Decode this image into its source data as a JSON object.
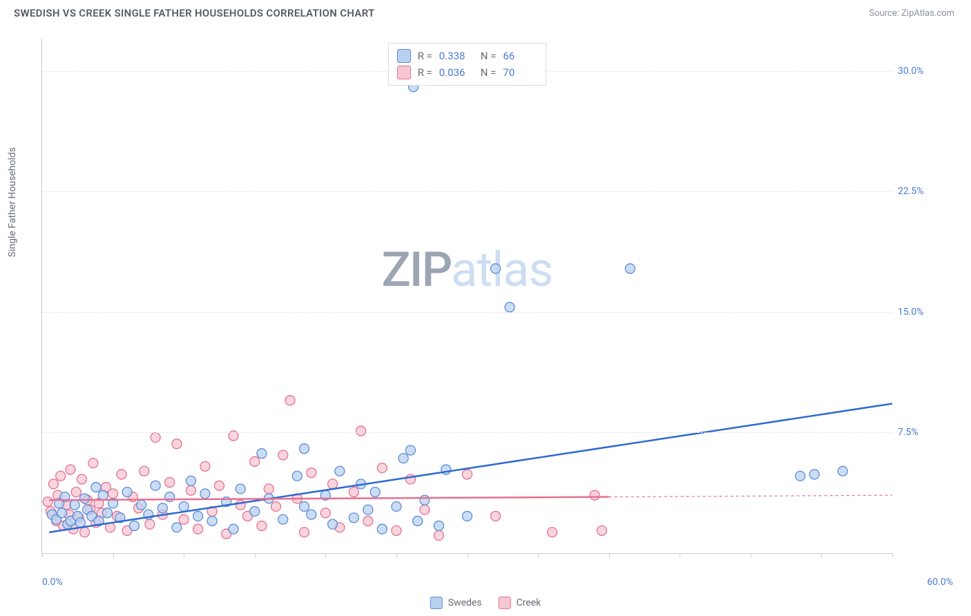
{
  "header": {
    "title": "SWEDISH VS CREEK SINGLE FATHER HOUSEHOLDS CORRELATION CHART",
    "source": "Source: ZipAtlas.com"
  },
  "chart": {
    "type": "scatter",
    "y_axis_label": "Single Father Households",
    "background_color": "#ffffff",
    "grid_color": "#e2e4e8",
    "axis_color": "#c9ccd2",
    "xlim": [
      0,
      60
    ],
    "ylim": [
      0,
      32
    ],
    "x_tick_step": 5,
    "y_ticks": [
      7.5,
      15.0,
      22.5,
      30.0
    ],
    "y_tick_labels": [
      "7.5%",
      "15.0%",
      "22.5%",
      "30.0%"
    ],
    "x_min_label": "0.0%",
    "x_max_label": "60.0%",
    "marker_radius": 7,
    "marker_stroke_width": 1.3,
    "trend_line_width": 2.5,
    "series": [
      {
        "name": "Swedes",
        "fill_color": "#b9d1f0",
        "stroke_color": "#5a8cd8",
        "trend_color": "#2e6ad1",
        "r": 0.338,
        "n": 66,
        "trend": {
          "x1": 0.5,
          "y1": 1.3,
          "x2": 60,
          "y2": 9.3,
          "extrapolate_from": 60
        },
        "points": [
          [
            0.7,
            2.4
          ],
          [
            1.0,
            2.1
          ],
          [
            1.2,
            3.1
          ],
          [
            1.4,
            2.5
          ],
          [
            1.6,
            3.5
          ],
          [
            1.8,
            1.8
          ],
          [
            2.0,
            2.0
          ],
          [
            2.3,
            3.0
          ],
          [
            2.5,
            2.3
          ],
          [
            2.7,
            1.9
          ],
          [
            3.0,
            3.4
          ],
          [
            3.2,
            2.7
          ],
          [
            3.5,
            2.3
          ],
          [
            3.8,
            4.1
          ],
          [
            4.0,
            2.0
          ],
          [
            4.3,
            3.6
          ],
          [
            4.6,
            2.5
          ],
          [
            5.0,
            3.1
          ],
          [
            5.5,
            2.2
          ],
          [
            6.0,
            3.8
          ],
          [
            6.5,
            1.7
          ],
          [
            7.0,
            3.0
          ],
          [
            7.5,
            2.4
          ],
          [
            8.0,
            4.2
          ],
          [
            8.5,
            2.8
          ],
          [
            9.0,
            3.5
          ],
          [
            9.5,
            1.6
          ],
          [
            10.0,
            2.9
          ],
          [
            10.5,
            4.5
          ],
          [
            11.0,
            2.3
          ],
          [
            11.5,
            3.7
          ],
          [
            12.0,
            2.0
          ],
          [
            13.0,
            3.2
          ],
          [
            13.5,
            1.5
          ],
          [
            14.0,
            4.0
          ],
          [
            15.0,
            2.6
          ],
          [
            15.5,
            6.2
          ],
          [
            16.0,
            3.4
          ],
          [
            17.0,
            2.1
          ],
          [
            18.0,
            4.8
          ],
          [
            18.5,
            6.5
          ],
          [
            19.0,
            2.4
          ],
          [
            20.0,
            3.6
          ],
          [
            20.5,
            1.8
          ],
          [
            21.0,
            5.1
          ],
          [
            22.0,
            2.2
          ],
          [
            22.5,
            4.3
          ],
          [
            23.0,
            2.7
          ],
          [
            24.0,
            1.5
          ],
          [
            25.0,
            2.9
          ],
          [
            25.5,
            5.9
          ],
          [
            26.0,
            6.4
          ],
          [
            26.5,
            2.0
          ],
          [
            27.0,
            3.3
          ],
          [
            28.0,
            1.7
          ],
          [
            28.5,
            5.2
          ],
          [
            26.2,
            29.0
          ],
          [
            30.0,
            2.3
          ],
          [
            32.0,
            17.7
          ],
          [
            33.0,
            15.3
          ],
          [
            41.5,
            17.7
          ],
          [
            53.5,
            4.8
          ],
          [
            54.5,
            4.9
          ],
          [
            56.5,
            5.1
          ],
          [
            18.5,
            2.9
          ],
          [
            23.5,
            3.8
          ]
        ]
      },
      {
        "name": "Creek",
        "fill_color": "#f6c7d2",
        "stroke_color": "#e76f90",
        "trend_color": "#e76f90",
        "r": 0.036,
        "n": 70,
        "trend": {
          "x1": 0.5,
          "y1": 3.3,
          "x2": 40,
          "y2": 3.5,
          "extrapolate_from": 40
        },
        "points": [
          [
            0.4,
            3.2
          ],
          [
            0.6,
            2.6
          ],
          [
            0.8,
            4.3
          ],
          [
            1.0,
            2.0
          ],
          [
            1.1,
            3.6
          ],
          [
            1.3,
            4.8
          ],
          [
            1.5,
            1.7
          ],
          [
            1.7,
            3.0
          ],
          [
            1.9,
            2.4
          ],
          [
            2.0,
            5.2
          ],
          [
            2.2,
            1.5
          ],
          [
            2.4,
            3.8
          ],
          [
            2.6,
            2.2
          ],
          [
            2.8,
            4.6
          ],
          [
            3.0,
            1.3
          ],
          [
            3.2,
            3.3
          ],
          [
            3.4,
            2.7
          ],
          [
            3.6,
            5.6
          ],
          [
            3.8,
            1.9
          ],
          [
            4.0,
            3.1
          ],
          [
            4.2,
            2.5
          ],
          [
            4.5,
            4.1
          ],
          [
            4.8,
            1.6
          ],
          [
            5.0,
            3.7
          ],
          [
            5.3,
            2.3
          ],
          [
            5.6,
            4.9
          ],
          [
            6.0,
            1.4
          ],
          [
            6.4,
            3.5
          ],
          [
            6.8,
            2.8
          ],
          [
            7.2,
            5.1
          ],
          [
            7.6,
            1.8
          ],
          [
            8.0,
            7.2
          ],
          [
            8.5,
            2.4
          ],
          [
            9.0,
            4.4
          ],
          [
            9.5,
            6.8
          ],
          [
            10.0,
            2.1
          ],
          [
            10.5,
            3.9
          ],
          [
            11.0,
            1.5
          ],
          [
            11.5,
            5.4
          ],
          [
            12.0,
            2.6
          ],
          [
            12.5,
            4.2
          ],
          [
            13.0,
            1.2
          ],
          [
            13.5,
            7.3
          ],
          [
            14.0,
            3.0
          ],
          [
            14.5,
            2.3
          ],
          [
            15.0,
            5.7
          ],
          [
            15.5,
            1.7
          ],
          [
            16.0,
            4.0
          ],
          [
            16.5,
            2.9
          ],
          [
            17.0,
            6.1
          ],
          [
            17.5,
            9.5
          ],
          [
            18.0,
            3.4
          ],
          [
            18.5,
            1.3
          ],
          [
            19.0,
            5.0
          ],
          [
            20.0,
            2.5
          ],
          [
            20.5,
            4.3
          ],
          [
            21.0,
            1.6
          ],
          [
            22.0,
            3.8
          ],
          [
            22.5,
            7.6
          ],
          [
            23.0,
            2.0
          ],
          [
            24.0,
            5.3
          ],
          [
            25.0,
            1.4
          ],
          [
            26.0,
            4.6
          ],
          [
            27.0,
            2.7
          ],
          [
            28.0,
            1.1
          ],
          [
            30.0,
            4.9
          ],
          [
            32.0,
            2.3
          ],
          [
            36.0,
            1.3
          ],
          [
            39.0,
            3.6
          ],
          [
            39.5,
            1.4
          ]
        ]
      }
    ],
    "legend_bottom": [
      {
        "label": "Swedes",
        "fill": "#b9d1f0",
        "stroke": "#5a8cd8"
      },
      {
        "label": "Creek",
        "fill": "#f6c7d2",
        "stroke": "#e76f90"
      }
    ],
    "watermark": {
      "part1": "ZIP",
      "part2": "atlas"
    }
  }
}
